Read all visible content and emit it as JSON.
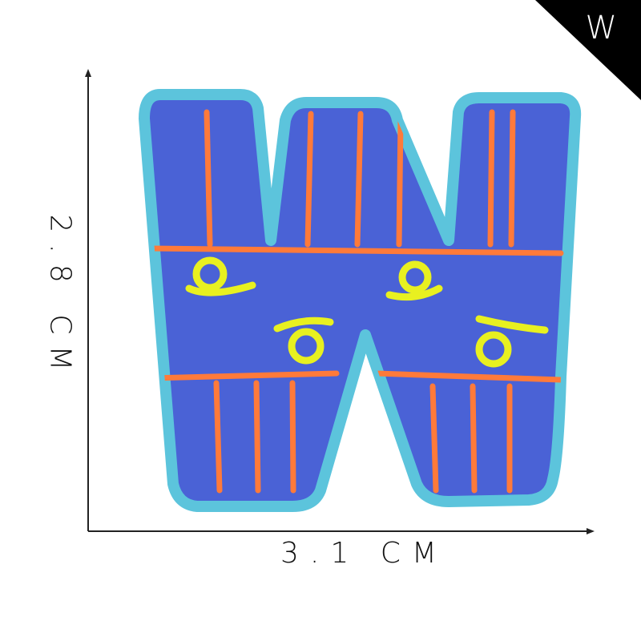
{
  "corner_badge": {
    "letter": "W",
    "color": "#000000"
  },
  "dimensions": {
    "width_label": "3.1 CM",
    "height_label": "2.8 CM"
  },
  "patch": {
    "letter": "W",
    "fabric_color": "#4a62d6",
    "border_color": "#5cc4dc",
    "stripe_color": "#ff7a3a",
    "motif_color": "#e8f020"
  }
}
